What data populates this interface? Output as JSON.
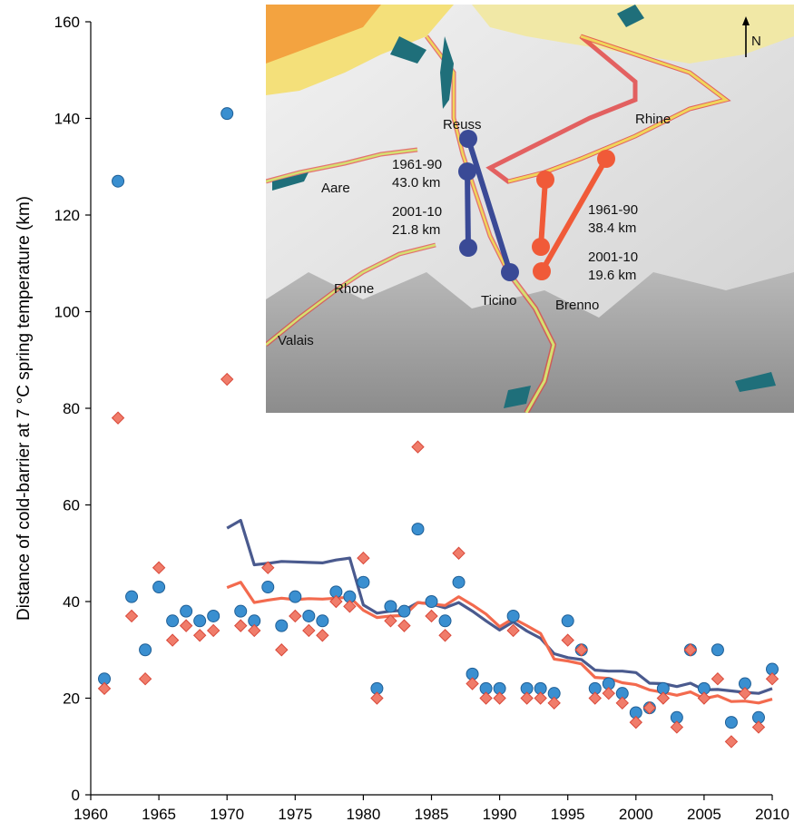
{
  "chart_data": {
    "type": "scatter",
    "ylabel": "Distance of cold-barrier at 7 °C spring temperature (km)",
    "xlabel": "",
    "xlim": [
      1960,
      2010
    ],
    "ylim": [
      0,
      160
    ],
    "x_ticks": [
      "1960",
      "1965",
      "1970",
      "1975",
      "1980",
      "1985",
      "1990",
      "1995",
      "2000",
      "2005",
      "2010"
    ],
    "y_ticks": [
      "0",
      "20",
      "40",
      "60",
      "80",
      "100",
      "120",
      "140",
      "160"
    ],
    "grid": false,
    "series": [
      {
        "marker": "circle",
        "color": "#3a8fd0",
        "points": [
          [
            1961,
            24
          ],
          [
            1962,
            127
          ],
          [
            1963,
            41
          ],
          [
            1964,
            30
          ],
          [
            1965,
            43
          ],
          [
            1966,
            36
          ],
          [
            1967,
            38
          ],
          [
            1968,
            36
          ],
          [
            1969,
            37
          ],
          [
            1970,
            141
          ],
          [
            1971,
            38
          ],
          [
            1972,
            36
          ],
          [
            1973,
            43
          ],
          [
            1974,
            35
          ],
          [
            1975,
            41
          ],
          [
            1976,
            37
          ],
          [
            1977,
            36
          ],
          [
            1978,
            42
          ],
          [
            1979,
            41
          ],
          [
            1980,
            44
          ],
          [
            1981,
            22
          ],
          [
            1982,
            39
          ],
          [
            1983,
            38
          ],
          [
            1984,
            55
          ],
          [
            1985,
            40
          ],
          [
            1986,
            36
          ],
          [
            1987,
            44
          ],
          [
            1988,
            25
          ],
          [
            1989,
            22
          ],
          [
            1990,
            22
          ],
          [
            1991,
            37
          ],
          [
            1992,
            22
          ],
          [
            1993,
            22
          ],
          [
            1994,
            21
          ],
          [
            1995,
            36
          ],
          [
            1996,
            30
          ],
          [
            1997,
            22
          ],
          [
            1998,
            23
          ],
          [
            1999,
            21
          ],
          [
            2000,
            17
          ],
          [
            2001,
            18
          ],
          [
            2002,
            22
          ],
          [
            2003,
            16
          ],
          [
            2004,
            30
          ],
          [
            2005,
            22
          ],
          [
            2006,
            30
          ],
          [
            2007,
            15
          ],
          [
            2008,
            23
          ],
          [
            2009,
            16
          ],
          [
            2010,
            26
          ]
        ]
      },
      {
        "marker": "diamond",
        "color": "#f07c6a",
        "points": [
          [
            1961,
            22
          ],
          [
            1962,
            78
          ],
          [
            1963,
            37
          ],
          [
            1964,
            24
          ],
          [
            1965,
            47
          ],
          [
            1966,
            32
          ],
          [
            1967,
            35
          ],
          [
            1968,
            33
          ],
          [
            1969,
            34
          ],
          [
            1970,
            86
          ],
          [
            1971,
            35
          ],
          [
            1972,
            34
          ],
          [
            1973,
            47
          ],
          [
            1974,
            30
          ],
          [
            1975,
            37
          ],
          [
            1976,
            34
          ],
          [
            1977,
            33
          ],
          [
            1978,
            40
          ],
          [
            1979,
            39
          ],
          [
            1980,
            49
          ],
          [
            1981,
            20
          ],
          [
            1982,
            36
          ],
          [
            1983,
            35
          ],
          [
            1984,
            72
          ],
          [
            1985,
            37
          ],
          [
            1986,
            33
          ],
          [
            1987,
            50
          ],
          [
            1988,
            23
          ],
          [
            1989,
            20
          ],
          [
            1990,
            20
          ],
          [
            1991,
            34
          ],
          [
            1992,
            20
          ],
          [
            1993,
            20
          ],
          [
            1994,
            19
          ],
          [
            1995,
            32
          ],
          [
            1996,
            30
          ],
          [
            1997,
            20
          ],
          [
            1998,
            21
          ],
          [
            1999,
            19
          ],
          [
            2000,
            15
          ],
          [
            2001,
            18
          ],
          [
            2002,
            20
          ],
          [
            2003,
            14
          ],
          [
            2004,
            30
          ],
          [
            2005,
            20
          ],
          [
            2006,
            24
          ],
          [
            2007,
            11
          ],
          [
            2008,
            21
          ],
          [
            2009,
            14
          ],
          [
            2010,
            24
          ]
        ]
      },
      {
        "marker": "line",
        "color": "#4a5a8e",
        "points": [
          [
            1970,
            55.2
          ],
          [
            1971,
            56.8
          ],
          [
            1972,
            47.6
          ],
          [
            1973,
            47.9
          ],
          [
            1974,
            48.3
          ],
          [
            1975,
            48.2
          ],
          [
            1976,
            48.1
          ],
          [
            1977,
            48.0
          ],
          [
            1978,
            48.6
          ],
          [
            1979,
            49.0
          ],
          [
            1980,
            39.3
          ],
          [
            1981,
            37.6
          ],
          [
            1982,
            38.0
          ],
          [
            1983,
            38.2
          ],
          [
            1984,
            39.8
          ],
          [
            1985,
            39.5
          ],
          [
            1986,
            38.7
          ],
          [
            1987,
            39.8
          ],
          [
            1988,
            38.0
          ],
          [
            1989,
            36.0
          ],
          [
            1990,
            34.1
          ],
          [
            1991,
            35.8
          ],
          [
            1992,
            33.9
          ],
          [
            1993,
            32.4
          ],
          [
            1994,
            29.2
          ],
          [
            1995,
            28.4
          ],
          [
            1996,
            28.0
          ],
          [
            1997,
            25.8
          ],
          [
            1998,
            25.6
          ],
          [
            1999,
            25.6
          ],
          [
            2000,
            25.3
          ],
          [
            2001,
            23.1
          ],
          [
            2002,
            23.0
          ],
          [
            2003,
            22.4
          ],
          [
            2004,
            23.1
          ],
          [
            2005,
            21.7
          ],
          [
            2006,
            21.8
          ],
          [
            2007,
            21.5
          ],
          [
            2008,
            21.2
          ],
          [
            2009,
            21.0
          ],
          [
            2010,
            22.0
          ]
        ]
      },
      {
        "marker": "line",
        "color": "#f36a4e",
        "points": [
          [
            1970,
            42.9
          ],
          [
            1971,
            44.0
          ],
          [
            1972,
            39.8
          ],
          [
            1973,
            40.3
          ],
          [
            1974,
            40.7
          ],
          [
            1975,
            40.4
          ],
          [
            1976,
            40.6
          ],
          [
            1977,
            40.5
          ],
          [
            1978,
            40.7
          ],
          [
            1979,
            40.9
          ],
          [
            1980,
            38.2
          ],
          [
            1981,
            36.7
          ],
          [
            1982,
            37.0
          ],
          [
            1983,
            37.1
          ],
          [
            1984,
            39.8
          ],
          [
            1985,
            39.5
          ],
          [
            1986,
            39.2
          ],
          [
            1987,
            41.0
          ],
          [
            1988,
            39.3
          ],
          [
            1989,
            37.4
          ],
          [
            1990,
            34.8
          ],
          [
            1991,
            36.5
          ],
          [
            1992,
            35.0
          ],
          [
            1993,
            33.4
          ],
          [
            1994,
            28.1
          ],
          [
            1995,
            27.7
          ],
          [
            1996,
            27.1
          ],
          [
            1997,
            24.3
          ],
          [
            1998,
            24.1
          ],
          [
            1999,
            23.2
          ],
          [
            2000,
            22.8
          ],
          [
            2001,
            21.7
          ],
          [
            2002,
            21.2
          ],
          [
            2003,
            20.6
          ],
          [
            2004,
            21.3
          ],
          [
            2005,
            19.9
          ],
          [
            2006,
            20.5
          ],
          [
            2007,
            19.3
          ],
          [
            2008,
            19.4
          ],
          [
            2009,
            19.0
          ],
          [
            2010,
            19.8
          ]
        ]
      }
    ],
    "inset_map": {
      "north_label": "N",
      "labels": [
        "Reuss",
        "Rhine",
        "Aare",
        "Rhone",
        "Valais",
        "Ticino",
        "Brenno"
      ],
      "blue_annotation": {
        "a": "1961-90",
        "b": "43.0 km",
        "c": "2001-10",
        "d": "21.8 km",
        "color": "#3a4a96"
      },
      "red_annotation": {
        "a": "1961-90",
        "b": "38.4 km",
        "c": "2001-10",
        "d": "19.6 km",
        "color": "#f05a38"
      }
    }
  }
}
